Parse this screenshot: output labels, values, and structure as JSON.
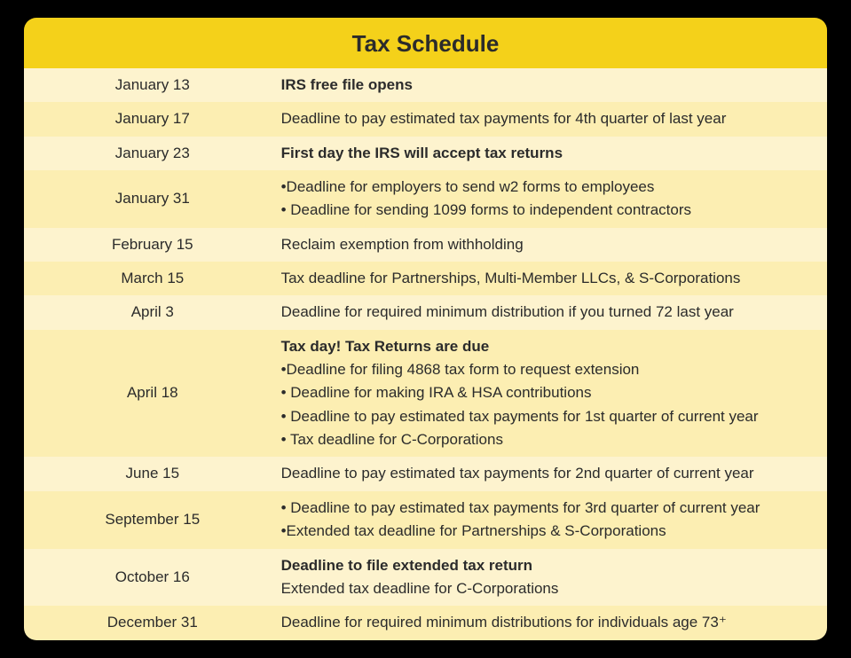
{
  "colors": {
    "header_bg": "#f4d11a",
    "row_even": "#fdf3ce",
    "row_odd": "#fceeb2",
    "text": "#2b2b2b"
  },
  "title": "Tax Schedule",
  "rows": [
    {
      "date": "January 13",
      "lines": [
        {
          "text": "IRS free file opens",
          "bold": true
        }
      ]
    },
    {
      "date": "January 17",
      "lines": [
        {
          "text": "Deadline to pay estimated tax payments for 4th quarter of last year",
          "bold": false
        }
      ]
    },
    {
      "date": "January 23",
      "lines": [
        {
          "text": "First day the IRS will accept tax returns",
          "bold": true
        }
      ]
    },
    {
      "date": "January 31",
      "lines": [
        {
          "text": "•Deadline for employers to send w2 forms to employees",
          "bold": false
        },
        {
          "text": "• Deadline for sending 1099 forms to independent contractors",
          "bold": false
        }
      ]
    },
    {
      "date": "February 15",
      "lines": [
        {
          "text": "Reclaim exemption from withholding",
          "bold": false
        }
      ]
    },
    {
      "date": "March 15",
      "lines": [
        {
          "text": "Tax deadline for Partnerships, Multi-Member LLCs, & S-Corporations",
          "bold": false
        }
      ]
    },
    {
      "date": "April 3",
      "lines": [
        {
          "text": "Deadline for required minimum distribution if you turned 72 last year",
          "bold": false
        }
      ]
    },
    {
      "date": "April 18",
      "lines": [
        {
          "text": "Tax day! Tax Returns are due",
          "bold": true
        },
        {
          "text": "•Deadline for filing 4868 tax form to request extension",
          "bold": false
        },
        {
          "text": "• Deadline for making IRA & HSA contributions",
          "bold": false
        },
        {
          "text": "• Deadline to pay estimated tax payments for 1st quarter of current year",
          "bold": false
        },
        {
          "text": "• Tax deadline for C-Corporations",
          "bold": false
        }
      ]
    },
    {
      "date": "June 15",
      "lines": [
        {
          "text": "Deadline to pay estimated tax payments for 2nd quarter of current year",
          "bold": false
        }
      ]
    },
    {
      "date": "September 15",
      "lines": [
        {
          "text": "• Deadline to pay estimated tax payments for 3rd quarter of current year",
          "bold": false
        },
        {
          "text": "•Extended tax deadline for Partnerships & S-Corporations",
          "bold": false
        }
      ]
    },
    {
      "date": "October 16",
      "lines": [
        {
          "text": "Deadline to file extended tax return",
          "bold": true
        },
        {
          "text": "Extended tax deadline for C-Corporations",
          "bold": false
        }
      ]
    },
    {
      "date": "December 31",
      "lines": [
        {
          "text": "Deadline for required minimum distributions for individuals age 73⁺",
          "bold": false
        }
      ]
    }
  ]
}
